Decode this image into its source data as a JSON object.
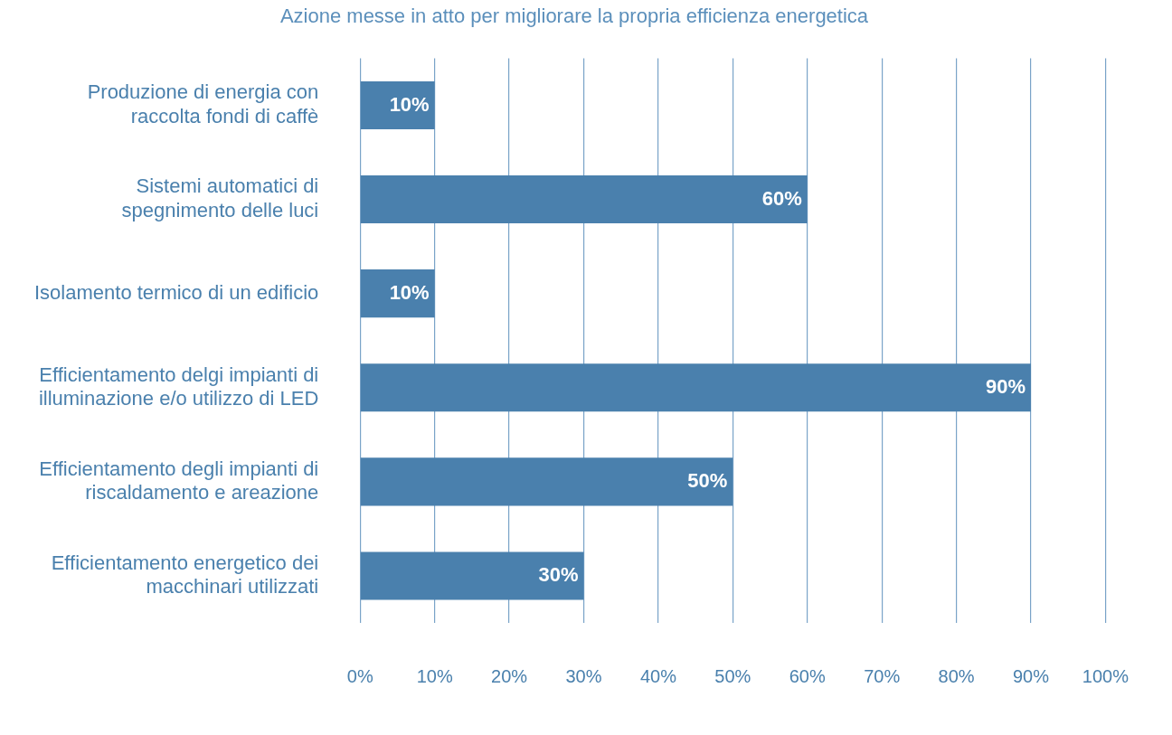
{
  "chart_data": {
    "type": "bar",
    "orientation": "horizontal",
    "title": "Azione messe in atto per migliorare la propria efficienza energetica",
    "categories": [
      "Produzione di energia con raccolta fondi di caffè",
      "Sistemi automatici di spegnimento delle luci",
      "Isolamento termico di un edificio",
      "Efficientamento delgi impianti di illuminazione e/o utilizzo di LED",
      "Efficientamento degli impianti di riscaldamento e areazione",
      "Efficientamento energetico dei macchinari utilizzati"
    ],
    "values": [
      10,
      60,
      10,
      90,
      50,
      30
    ],
    "value_labels": [
      "10%",
      "60%",
      "10%",
      "90%",
      "50%",
      "30%"
    ],
    "color": "#4a80ad",
    "xlim": [
      0,
      100
    ],
    "xticks": [
      {
        "value": 0,
        "label": "0%"
      },
      {
        "value": 10,
        "label": "10%"
      },
      {
        "value": 20,
        "label": "20%"
      },
      {
        "value": 30,
        "label": "30%"
      },
      {
        "value": 40,
        "label": "40%"
      },
      {
        "value": 50,
        "label": "50%"
      },
      {
        "value": 60,
        "label": "60%"
      },
      {
        "value": 70,
        "label": "70%"
      },
      {
        "value": 80,
        "label": "80%"
      },
      {
        "value": 90,
        "label": "90%"
      },
      {
        "value": 100,
        "label": "100%"
      }
    ],
    "grid": "x",
    "legend": false
  }
}
